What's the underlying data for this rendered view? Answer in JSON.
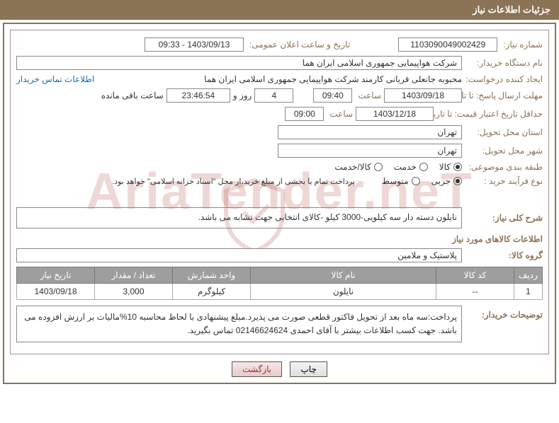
{
  "header": {
    "title": "جزئیات اطلاعات نیاز"
  },
  "colors": {
    "brand": "#8b7355",
    "link": "#1a6db3",
    "table_header_bg": "#9e9e9e",
    "border": "#888888"
  },
  "fields": {
    "need_number_label": "شماره نیاز:",
    "need_number": "1103090049002429",
    "announce_label": "تاریخ و ساعت اعلان عمومی:",
    "announce_value": "1403/09/13 - 09:33",
    "buyer_org_label": "نام دستگاه خریدار:",
    "buyer_org": "شرکت هواپیمایی جمهوری اسلامی ایران هما",
    "requester_label": "ایجاد کننده درخواست:",
    "requester": "محبوبه جانعلی قربانی کارمند شرکت هواپیمایی جمهوری اسلامی ایران هما",
    "buyer_contact_link": "اطلاعات تماس خریدار",
    "reply_deadline_label": "مهلت ارسال پاسخ: تا تاریخ:",
    "reply_date": "1403/09/18",
    "time_label": "ساعت",
    "reply_time": "09:40",
    "days_count": "4",
    "days_and": "روز و",
    "countdown": "23:46:54",
    "remaining_label": "ساعت باقی مانده",
    "validity_label": "حداقل تاریخ اعتبار قیمت: تا تاریخ:",
    "validity_date": "1403/12/18",
    "validity_time": "09:00",
    "province_label": "استان محل تحویل:",
    "province": "تهران",
    "city_label": "شهر محل تحویل:",
    "city": "تهران",
    "category_label": "طبقه بندی موضوعی:",
    "cat_goods": "کالا",
    "cat_service": "خدمت",
    "cat_both": "کالا/خدمت",
    "purchase_process_label": "نوع فرآیند خرید :",
    "proc_small": "جزیی",
    "proc_medium": "متوسط",
    "payment_note": "پرداخت تمام یا بخشی از مبلغ خرید،از محل \"اسناد خزانه اسلامی\" خواهد بود.",
    "need_desc_label": "شرح کلی نیاز:",
    "need_desc": "نایلون دسته دار سه کیلویی-3000 کیلو -کالای انتخابی جهت تشابه می باشد.",
    "goods_info_label": "اطلاعات کالاهای مورد نیاز",
    "goods_group_label": "گروه کالا:",
    "goods_group": "پلاستیک و ملامین",
    "buyer_notes_label": "توضیحات خریدار:",
    "buyer_notes": "پرداخت:سه ماه بعد از تحویل فاکتور قطعی صورت می پذیرد.مبلغ پیشنهادی با لحاظ محاسبه 10%مالیات بر ارزش افزوده می باشد. جهت کسب اطلاعات بیشتر با آقای احمدی 02146624624 تماس بگیرید."
  },
  "table": {
    "columns": [
      "ردیف",
      "کد کالا",
      "نام کالا",
      "واحد شمارش",
      "تعداد / مقدار",
      "تاریخ نیاز"
    ],
    "rows": [
      [
        "1",
        "--",
        "نایلون",
        "کیلوگرم",
        "3,000",
        "1403/09/18"
      ]
    ]
  },
  "buttons": {
    "print": "چاپ",
    "back": "بازگشت"
  },
  "watermark": "AriaTender.neT"
}
